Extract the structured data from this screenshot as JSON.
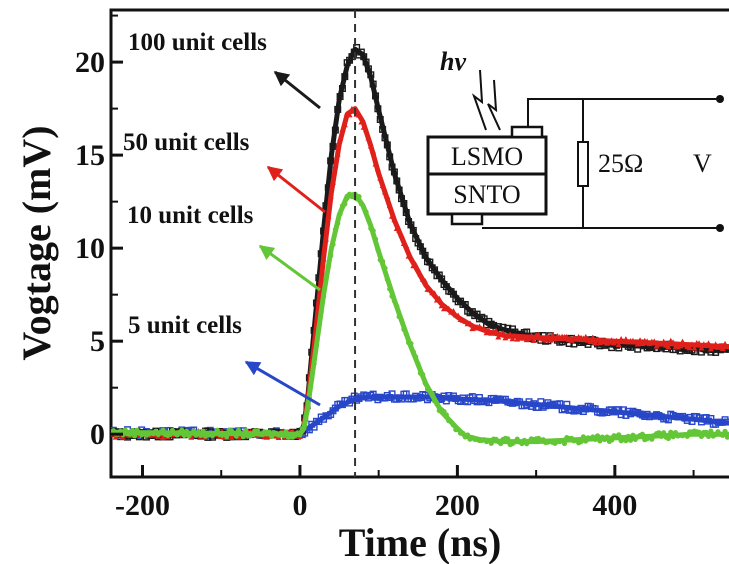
{
  "chart_data": {
    "type": "line",
    "title": "",
    "xlabel": "Time (ns)",
    "ylabel": "Vogtage (mV)",
    "xlim": [
      -240,
      545
    ],
    "ylim": [
      -2.3,
      22.8
    ],
    "xticks": [
      -200,
      0,
      200,
      400
    ],
    "yticks": [
      0,
      5,
      10,
      15,
      20
    ],
    "xtick_labels": [
      "-200",
      "0",
      "200",
      "400"
    ],
    "ytick_labels": [
      "0",
      "5",
      "10",
      "15",
      "20"
    ],
    "grid": false,
    "reference_line": {
      "x": 70,
      "style": "dashed"
    },
    "series": [
      {
        "name": "100 unit cells",
        "color": "#1a1a1a",
        "marker": "square",
        "points": [
          [
            -240,
            0
          ],
          [
            0,
            0
          ],
          [
            5,
            0.5
          ],
          [
            10,
            2
          ],
          [
            20,
            6.5
          ],
          [
            30,
            11
          ],
          [
            40,
            15
          ],
          [
            50,
            18
          ],
          [
            60,
            19.8
          ],
          [
            70,
            20.7
          ],
          [
            80,
            20.4
          ],
          [
            90,
            19.2
          ],
          [
            100,
            17.4
          ],
          [
            120,
            14
          ],
          [
            140,
            11.3
          ],
          [
            160,
            9.5
          ],
          [
            180,
            8.3
          ],
          [
            200,
            7.3
          ],
          [
            220,
            6.5
          ],
          [
            240,
            5.9
          ],
          [
            260,
            5.6
          ],
          [
            280,
            5.4
          ],
          [
            300,
            5.2
          ],
          [
            350,
            5.0
          ],
          [
            400,
            4.8
          ],
          [
            450,
            4.7
          ],
          [
            500,
            4.6
          ],
          [
            545,
            4.5
          ]
        ]
      },
      {
        "name": "50 unit cells",
        "color": "#e0201b",
        "marker": "triangle",
        "points": [
          [
            -240,
            0
          ],
          [
            0,
            0
          ],
          [
            5,
            0.4
          ],
          [
            10,
            1.8
          ],
          [
            20,
            5.5
          ],
          [
            30,
            9.5
          ],
          [
            40,
            13
          ],
          [
            50,
            15.6
          ],
          [
            60,
            17.2
          ],
          [
            70,
            17.5
          ],
          [
            80,
            16.8
          ],
          [
            90,
            15.5
          ],
          [
            100,
            14
          ],
          [
            120,
            11.5
          ],
          [
            140,
            9.5
          ],
          [
            160,
            8
          ],
          [
            180,
            7
          ],
          [
            200,
            6.3
          ],
          [
            220,
            5.8
          ],
          [
            240,
            5.5
          ],
          [
            260,
            5.3
          ],
          [
            300,
            5.2
          ],
          [
            350,
            5.1
          ],
          [
            400,
            5.0
          ],
          [
            450,
            4.9
          ],
          [
            500,
            4.8
          ],
          [
            545,
            4.7
          ]
        ]
      },
      {
        "name": "10 unit cells",
        "color": "#63c636",
        "marker": "circle",
        "points": [
          [
            -240,
            0.1
          ],
          [
            0,
            0
          ],
          [
            5,
            0.3
          ],
          [
            10,
            1.5
          ],
          [
            20,
            4.5
          ],
          [
            30,
            7.5
          ],
          [
            40,
            10
          ],
          [
            50,
            11.8
          ],
          [
            60,
            12.8
          ],
          [
            70,
            12.9
          ],
          [
            80,
            12.3
          ],
          [
            90,
            11.2
          ],
          [
            100,
            9.8
          ],
          [
            120,
            7.2
          ],
          [
            140,
            4.8
          ],
          [
            160,
            2.7
          ],
          [
            180,
            1.2
          ],
          [
            200,
            0.3
          ],
          [
            210,
            -0.1
          ],
          [
            230,
            -0.3
          ],
          [
            260,
            -0.4
          ],
          [
            300,
            -0.4
          ],
          [
            350,
            -0.3
          ],
          [
            400,
            -0.2
          ],
          [
            450,
            -0.1
          ],
          [
            500,
            0
          ],
          [
            545,
            0
          ]
        ]
      },
      {
        "name": "5 unit cells",
        "color": "#2846c8",
        "marker": "square",
        "points": [
          [
            -240,
            0.1
          ],
          [
            0,
            0
          ],
          [
            10,
            0.3
          ],
          [
            20,
            0.6
          ],
          [
            30,
            0.9
          ],
          [
            40,
            1.2
          ],
          [
            50,
            1.5
          ],
          [
            60,
            1.7
          ],
          [
            70,
            1.9
          ],
          [
            90,
            2.0
          ],
          [
            120,
            2.0
          ],
          [
            160,
            2.0
          ],
          [
            200,
            1.9
          ],
          [
            250,
            1.8
          ],
          [
            300,
            1.6
          ],
          [
            350,
            1.4
          ],
          [
            400,
            1.2
          ],
          [
            450,
            1.0
          ],
          [
            500,
            0.8
          ],
          [
            545,
            0.6
          ]
        ]
      }
    ],
    "annotations": [
      {
        "text": "100 unit cells",
        "series": "100 unit cells"
      },
      {
        "text": "50 unit cells",
        "series": "50 unit cells"
      },
      {
        "text": "10 unit cells",
        "series": "10 unit cells"
      },
      {
        "text": "5 unit cells",
        "series": "5 unit cells"
      }
    ],
    "inset": {
      "light_label": "hν",
      "top_layer": "LSMO",
      "bottom_layer": "SNTO",
      "resistor_label": "25Ω",
      "voltage_label": "V"
    }
  }
}
